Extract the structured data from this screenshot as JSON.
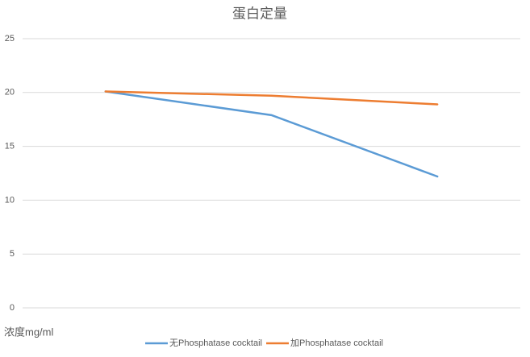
{
  "chart_data": {
    "type": "line",
    "title": "蛋白定量",
    "y_label": "浓度mg/ml",
    "categories": [
      null,
      null,
      null
    ],
    "series": [
      {
        "name": "无Phosphatase cocktail",
        "color": "#5b9bd5",
        "values": [
          20.1,
          17.9,
          12.2
        ]
      },
      {
        "name": "加Phosphatase cocktail",
        "color": "#ed7d31",
        "values": [
          20.1,
          19.7,
          18.9
        ]
      }
    ],
    "ylim": [
      0,
      25
    ],
    "yticks": [
      0,
      5,
      10,
      15,
      20,
      25
    ],
    "grid": true,
    "legend": "bottom"
  }
}
